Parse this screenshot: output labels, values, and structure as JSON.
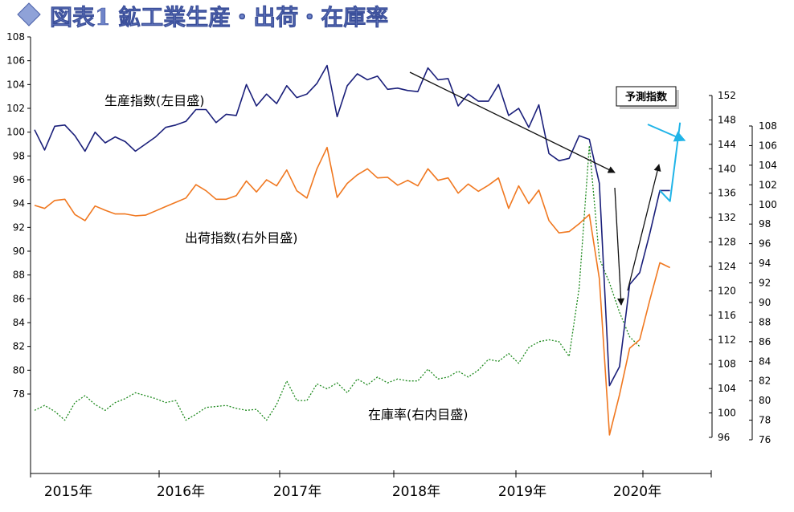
{
  "chart_data": {
    "type": "line",
    "title": "図表1 鉱工業生産・出荷・在庫率",
    "x_labels": [
      "2015年",
      "2016年",
      "2017年",
      "2018年",
      "2019年",
      "2020年"
    ],
    "left_axis": {
      "min": 76,
      "max": 108,
      "ticks": [
        78,
        80,
        82,
        84,
        86,
        88,
        90,
        92,
        94,
        96,
        98,
        100,
        102,
        104,
        106,
        108
      ]
    },
    "right_outer_axis": {
      "min": 96,
      "max": 152,
      "ticks": [
        96,
        100,
        104,
        108,
        112,
        116,
        120,
        124,
        128,
        132,
        136,
        140,
        144,
        148,
        152
      ]
    },
    "right_inner_axis": {
      "min": 76,
      "max": 108,
      "ticks": [
        76,
        78,
        80,
        82,
        84,
        86,
        88,
        90,
        92,
        94,
        96,
        98,
        100,
        102,
        104,
        106,
        108
      ]
    },
    "series": [
      {
        "name": "生産指数(左目盛)",
        "axis": "left",
        "color": "#1a1f7a",
        "style": "solid",
        "values": [
          100.2,
          98.5,
          100.5,
          100.6,
          99.7,
          98.4,
          100.0,
          99.1,
          99.6,
          99.2,
          98.4,
          99.0,
          99.6,
          100.4,
          100.6,
          100.9,
          101.9,
          101.9,
          100.8,
          101.5,
          101.4,
          104.0,
          102.2,
          103.2,
          102.4,
          103.9,
          102.9,
          103.2,
          104.1,
          105.6,
          101.3,
          103.9,
          104.9,
          104.4,
          104.7,
          103.6,
          103.7,
          103.5,
          103.4,
          105.4,
          104.4,
          104.5,
          102.2,
          103.2,
          102.6,
          102.6,
          104.0,
          101.4,
          102.0,
          100.4,
          102.3,
          98.2,
          97.6,
          97.8,
          99.7,
          99.4,
          95.7,
          78.7,
          80.3,
          87.2,
          88.2,
          91.5,
          95.1,
          95.1
        ]
      },
      {
        "name": "出荷指数(右外目盛)",
        "axis": "right_outer",
        "color": "#f07820",
        "style": "solid",
        "values": [
          134.0,
          133.5,
          134.8,
          135.0,
          132.5,
          131.5,
          133.9,
          133.2,
          132.6,
          132.6,
          132.3,
          132.4,
          133.1,
          133.8,
          134.5,
          135.2,
          137.4,
          136.4,
          135.0,
          135.0,
          135.6,
          138.0,
          136.2,
          138.2,
          137.2,
          139.8,
          136.4,
          135.2,
          140.0,
          143.5,
          135.3,
          137.6,
          139.0,
          140.0,
          138.5,
          138.6,
          137.3,
          138.1,
          137.2,
          140.0,
          138.1,
          138.5,
          136.0,
          137.5,
          136.3,
          137.3,
          138.5,
          133.5,
          137.2,
          134.3,
          136.5,
          131.5,
          129.5,
          129.7,
          131.0,
          132.5,
          122.0,
          96.4,
          103.0,
          110.6,
          112.0,
          118.5,
          124.6,
          123.8
        ]
      },
      {
        "name": "在庫率(右内目盛)",
        "axis": "right_inner",
        "color": "#1e8a1e",
        "style": "dotted",
        "values": [
          79.0,
          79.5,
          78.9,
          78.0,
          79.8,
          80.5,
          79.6,
          79.0,
          79.8,
          80.2,
          80.8,
          80.5,
          80.2,
          79.8,
          80.0,
          78.0,
          78.6,
          79.3,
          79.4,
          79.5,
          79.2,
          79.0,
          79.1,
          78.0,
          79.6,
          82.0,
          80.0,
          80.0,
          81.7,
          81.2,
          81.8,
          80.8,
          82.2,
          81.6,
          82.4,
          81.8,
          82.2,
          82.0,
          82.0,
          83.2,
          82.2,
          82.4,
          83.0,
          82.4,
          83.1,
          84.2,
          84.0,
          84.8,
          83.8,
          85.4,
          86.0,
          86.2,
          86.0,
          84.5,
          91.5,
          106.0,
          94.5,
          92.0,
          89.0,
          86.5,
          85.5
        ]
      },
      {
        "name": "予測指数",
        "axis": "left",
        "color": "#20b4e8",
        "style": "solid",
        "values": [
          null,
          null,
          null,
          null,
          null,
          null,
          null,
          null,
          null,
          null,
          null,
          null,
          null,
          null,
          null,
          null,
          null,
          null,
          null,
          null,
          null,
          null,
          null,
          null,
          null,
          null,
          null,
          null,
          null,
          null,
          null,
          null,
          null,
          null,
          null,
          null,
          null,
          null,
          null,
          null,
          null,
          null,
          null,
          null,
          null,
          null,
          null,
          null,
          null,
          null,
          null,
          null,
          null,
          null,
          null,
          null,
          null,
          null,
          null,
          null,
          null,
          null,
          95.1,
          94.2,
          100.8
        ]
      }
    ],
    "annotations": {
      "production_label": "生産指数(左目盛)",
      "shipment_label": "出荷指数(右外目盛)",
      "inventory_label": "在庫率(右内目盛)",
      "forecast_label": "予測指数"
    }
  }
}
